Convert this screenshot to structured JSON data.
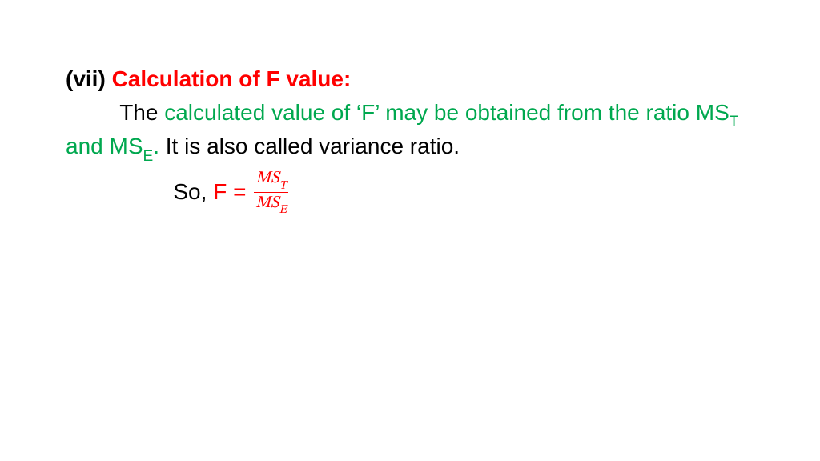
{
  "colors": {
    "red": "#ff0000",
    "green": "#00a84f",
    "black": "#000000",
    "background": "#ffffff"
  },
  "typography": {
    "body_family": "Comic Sans MS",
    "body_size_pt": 21,
    "math_family": "Cambria Math",
    "frac_size_pt": 16
  },
  "heading": {
    "numeral": "(vii) ",
    "title": "Calculation of F value:"
  },
  "paragraph": {
    "lead": "The ",
    "green_part_before_sub1": "calculated value of ‘F’ may be obtained from the ratio MS",
    "sub1": "T",
    "green_mid": " and MS",
    "sub2": "E",
    "green_period": ".",
    "black_tail": " It is also called variance ratio."
  },
  "formula": {
    "lead_text": "So, ",
    "f_equals": "F = ",
    "numerator_main": "MS",
    "numerator_sub": "T",
    "denominator_main": "MS",
    "denominator_sub": "E"
  }
}
